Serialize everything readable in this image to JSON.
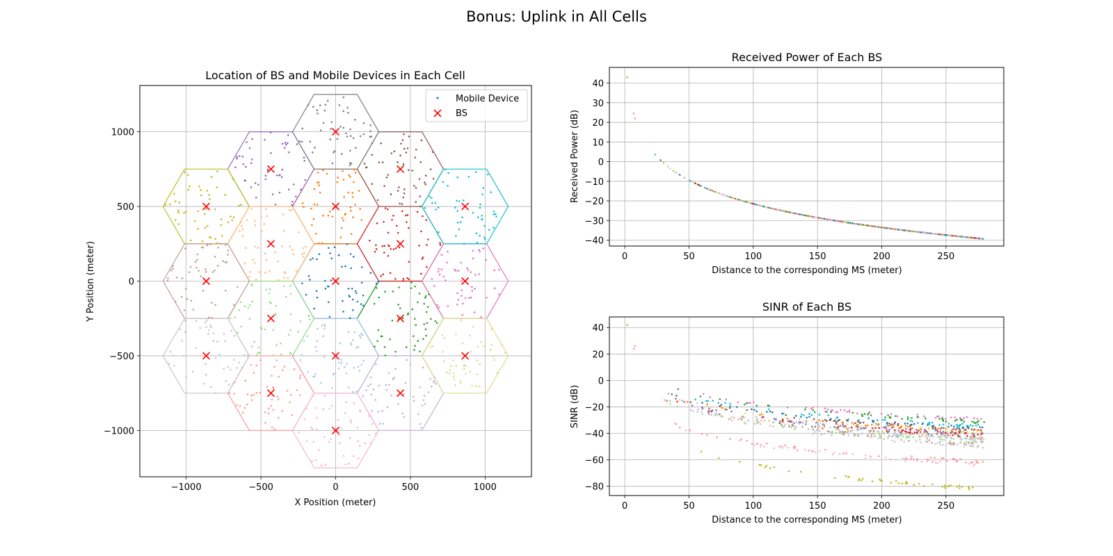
{
  "figure": {
    "title": "Bonus: Uplink in All Cells"
  },
  "chart_data": [
    {
      "type": "scatter",
      "title": "Location of BS and Mobile Devices in Each Cell",
      "xlabel": "X Position (meter)",
      "ylabel": "Y Position (meter)",
      "xlim": [
        -1310,
        1310
      ],
      "ylim": [
        -1310,
        1310
      ],
      "xticks": [
        -1000,
        -500,
        0,
        500,
        1000
      ],
      "yticks": [
        -1000,
        -500,
        0,
        500,
        1000
      ],
      "xtick_labels": [
        "−1000",
        "−500",
        "0",
        "500",
        "1000"
      ],
      "ytick_labels": [
        "−1000",
        "−500",
        "0",
        "500",
        "1000"
      ],
      "grid": true,
      "legend": {
        "placement": "top-right",
        "entries": [
          {
            "label": "Mobile Device",
            "marker": "dot",
            "color": "#1f77b4"
          },
          {
            "label": "BS",
            "marker": "x",
            "color": "#ff0000"
          }
        ]
      },
      "hex_radius": 288.7,
      "devices_per_cell": 50,
      "cells": [
        {
          "x": 0,
          "y": 0,
          "color": "#1f77b4"
        },
        {
          "x": 0,
          "y": 500,
          "color": "#ff7f0e"
        },
        {
          "x": 433,
          "y": -250,
          "color": "#2ca02c"
        },
        {
          "x": 433,
          "y": 250,
          "color": "#d62728"
        },
        {
          "x": -433,
          "y": 750,
          "color": "#9467bd"
        },
        {
          "x": 433,
          "y": 750,
          "color": "#8c564b"
        },
        {
          "x": 866,
          "y": 0,
          "color": "#e377c2"
        },
        {
          "x": 0,
          "y": 1000,
          "color": "#7f7f7f"
        },
        {
          "x": -866,
          "y": 500,
          "color": "#bcbd22"
        },
        {
          "x": 866,
          "y": 500,
          "color": "#17becf"
        },
        {
          "x": 0,
          "y": -500,
          "color": "#aec7e8"
        },
        {
          "x": -433,
          "y": 250,
          "color": "#ffbb78"
        },
        {
          "x": -433,
          "y": -250,
          "color": "#98df8a"
        },
        {
          "x": -433,
          "y": -750,
          "color": "#ff9896"
        },
        {
          "x": 433,
          "y": -750,
          "color": "#c5b0d5"
        },
        {
          "x": -866,
          "y": 0,
          "color": "#c49c94"
        },
        {
          "x": 0,
          "y": -1000,
          "color": "#f7b6d2"
        },
        {
          "x": -866,
          "y": -500,
          "color": "#c7c7c7"
        },
        {
          "x": 866,
          "y": -500,
          "color": "#dbdb8d"
        }
      ]
    },
    {
      "type": "scatter",
      "title": "Received Power of Each BS",
      "xlabel": "Distance to the corresponding MS (meter)",
      "ylabel": "Received Power (dB)",
      "xlim": [
        -12,
        295
      ],
      "ylim": [
        -43,
        48
      ],
      "xticks": [
        0,
        50,
        100,
        150,
        200,
        250
      ],
      "yticks": [
        -40,
        -30,
        -20,
        -10,
        0,
        10,
        20,
        30,
        40
      ],
      "xtick_labels": [
        "0",
        "50",
        "100",
        "150",
        "200",
        "250"
      ],
      "ytick_labels": [
        "−40",
        "−30",
        "−20",
        "−10",
        "0",
        "10",
        "20",
        "30",
        "40"
      ],
      "grid": true,
      "curve": {
        "model": "power_law",
        "reference_distance": 100,
        "reference_value_db": -21.5,
        "exponent": 4
      },
      "outliers": [
        {
          "x": 2,
          "y": 43,
          "color": "#bcbd22"
        },
        {
          "x": 7,
          "y": 24.5,
          "color": "#ff9896"
        },
        {
          "x": 8,
          "y": 22,
          "color": "#ff9896"
        }
      ]
    },
    {
      "type": "scatter",
      "title": "SINR of Each BS",
      "xlabel": "Distance to the corresponding MS (meter)",
      "ylabel": "SINR (dB)",
      "xlim": [
        -12,
        295
      ],
      "ylim": [
        -87,
        48
      ],
      "xticks": [
        0,
        50,
        100,
        150,
        200,
        250
      ],
      "yticks": [
        -80,
        -60,
        -40,
        -20,
        0,
        20,
        40
      ],
      "xtick_labels": [
        "0",
        "50",
        "100",
        "150",
        "200",
        "250"
      ],
      "ytick_labels": [
        "−80",
        "−60",
        "−40",
        "−20",
        "0",
        "20",
        "40"
      ],
      "grid": true,
      "series": [
        {
          "color": "#e377c2",
          "values_db_at_100m": -17,
          "at_250m": -28
        },
        {
          "color": "#2ca02c",
          "values_db_at_100m": -18,
          "at_250m": -30
        },
        {
          "color": "#17becf",
          "values_db_at_100m": -21,
          "at_250m": -33
        },
        {
          "color": "#1f77b4",
          "values_db_at_100m": -23,
          "at_250m": -35
        },
        {
          "color": "#8c564b",
          "values_db_at_100m": -24,
          "at_250m": -36
        },
        {
          "color": "#ff7f0e",
          "values_db_at_100m": -25,
          "at_250m": -37
        },
        {
          "color": "#dbdb8d",
          "values_db_at_100m": -26,
          "at_250m": -38
        },
        {
          "color": "#9467bd",
          "values_db_at_100m": -27,
          "at_250m": -39
        },
        {
          "color": "#d62728",
          "values_db_at_100m": -28,
          "at_250m": -40
        },
        {
          "color": "#7f7f7f",
          "values_db_at_100m": -29,
          "at_250m": -41
        },
        {
          "color": "#ffbb78",
          "values_db_at_100m": -30,
          "at_250m": -42
        },
        {
          "color": "#c5b0d5",
          "values_db_at_100m": -31,
          "at_250m": -44
        },
        {
          "color": "#98df8a",
          "values_db_at_100m": -32,
          "at_250m": -45
        },
        {
          "color": "#c49c94",
          "values_db_at_100m": -30,
          "at_250m": -47
        },
        {
          "color": "#aec7e8",
          "values_db_at_100m": -26,
          "at_250m": -43
        },
        {
          "color": "#c7c7c7",
          "values_db_at_100m": -33,
          "at_250m": -48
        },
        {
          "color": "#ff9896",
          "values_db_at_100m": -47,
          "at_250m": -60
        },
        {
          "color": "#f7b6d2",
          "values_db_at_100m": -48,
          "at_250m": -62
        },
        {
          "color": "#bcbd22",
          "values_db_at_100m": -64,
          "at_250m": -80
        }
      ],
      "outliers": [
        {
          "x": 2,
          "y": 42,
          "color": "#bcbd22"
        },
        {
          "x": 7,
          "y": 24,
          "color": "#ff9896"
        },
        {
          "x": 8,
          "y": 26,
          "color": "#ff9896"
        }
      ]
    }
  ]
}
